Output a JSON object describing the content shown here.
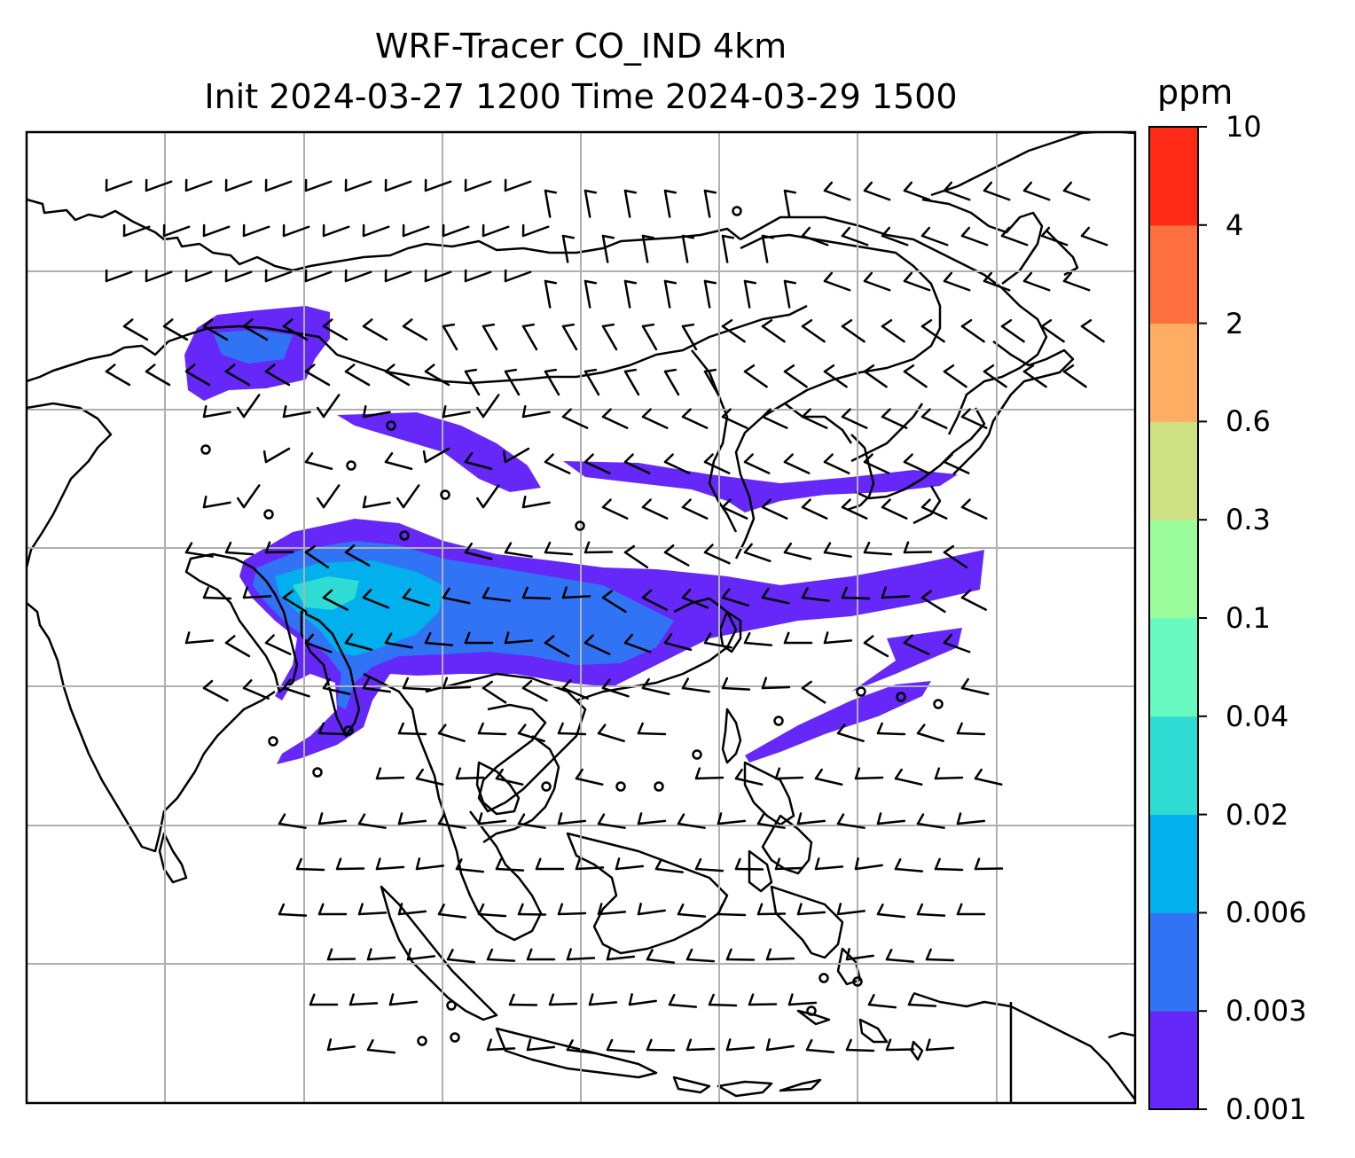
{
  "header": {
    "title_line1": "WRF-Tracer CO_IND 4km",
    "title_line2": "Init 2024-03-27 1200 Time 2024-03-29 1500"
  },
  "colorbar": {
    "unit": "ppm",
    "levels": [
      "0.001",
      "0.003",
      "0.006",
      "0.02",
      "0.04",
      "0.1",
      "0.3",
      "0.6",
      "2",
      "4",
      "10"
    ],
    "colors": [
      "#6528f9",
      "#3173f5",
      "#01b0ec",
      "#2fdcd3",
      "#67f9bf",
      "#9afc9a",
      "#cee182",
      "#fead62",
      "#ff7040",
      "#ff2a16"
    ]
  },
  "map": {
    "type": "tracer concentration map with wind barbs",
    "tracer": "CO_IND",
    "gridlines": true,
    "coastline_color": "#000000",
    "grid_color": "#b0b0b0",
    "background": "#ffffff"
  }
}
